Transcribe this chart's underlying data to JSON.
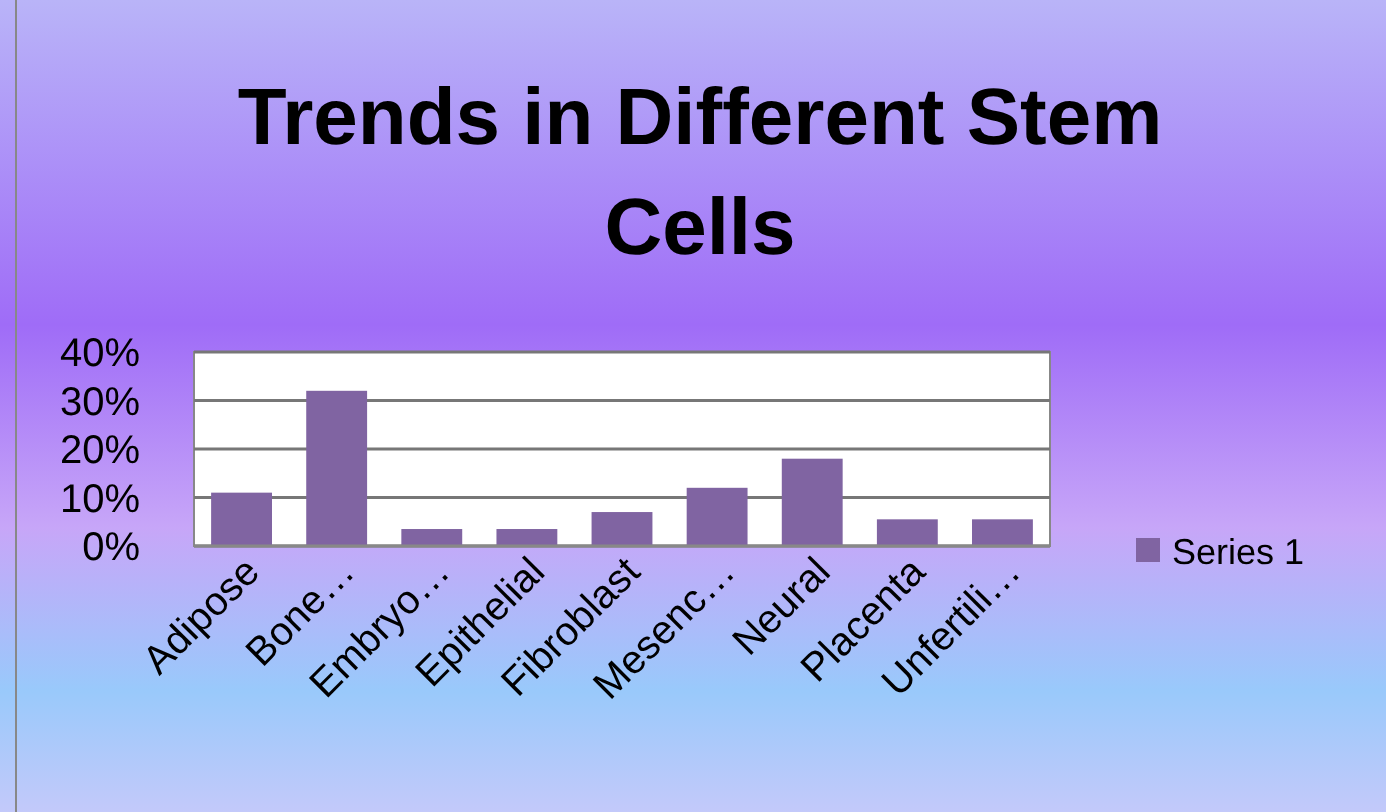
{
  "chart_data": {
    "type": "bar",
    "title": "Trends in Different Stem Cells",
    "categories": [
      "Adipose",
      "Bone…",
      "Embryo…",
      "Epithelial",
      "Fibroblast",
      "Mesenc…",
      "Neural",
      "Placenta",
      "Unfertili…"
    ],
    "series": [
      {
        "name": "Series 1",
        "color": "#8064a2",
        "values": [
          11,
          32,
          3.5,
          3.5,
          7,
          12,
          18,
          5.5,
          5.5
        ]
      }
    ],
    "ylim": [
      0,
      40
    ],
    "yticks": [
      {
        "value": 0,
        "label": "0%"
      },
      {
        "value": 10,
        "label": "10%"
      },
      {
        "value": 20,
        "label": "20%"
      },
      {
        "value": 30,
        "label": "30%"
      },
      {
        "value": 40,
        "label": "40%"
      }
    ],
    "grid": "y",
    "legend": "right"
  }
}
